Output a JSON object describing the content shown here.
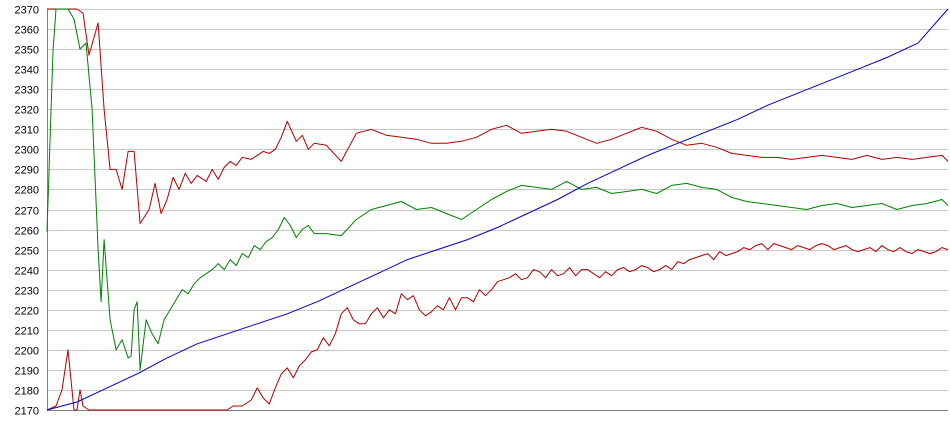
{
  "chart_data": {
    "type": "line",
    "title": "",
    "xlabel": "",
    "ylabel": "",
    "ylim": [
      2170,
      2370
    ],
    "yticks": [
      2170,
      2180,
      2190,
      2200,
      2210,
      2220,
      2230,
      2240,
      2250,
      2260,
      2270,
      2280,
      2290,
      2300,
      2310,
      2320,
      2330,
      2340,
      2350,
      2360,
      2370
    ],
    "ytick_labels": [
      "2170",
      "2180",
      "2190",
      "2200",
      "2210",
      "2220",
      "2230",
      "2240",
      "2250",
      "2260",
      "2270",
      "2280",
      "2290",
      "2300",
      "2310",
      "2320",
      "2330",
      "2340",
      "2350",
      "2360",
      "2370"
    ],
    "xlim": [
      0,
      300
    ],
    "grid": "horizontal",
    "legend": "none",
    "colors": {
      "upper_band": "#b00000",
      "middle": "#008000",
      "lower_band": "#b00000",
      "trend": "#0000c0",
      "grid": "#c8c8c8",
      "axis": "#808080"
    },
    "series": [
      {
        "key": "upper_band",
        "x": [
          0,
          3,
          5,
          8,
          10,
          12,
          14,
          17,
          19,
          21,
          23,
          25,
          27,
          29,
          31,
          34,
          36,
          38,
          40,
          42,
          44,
          46,
          48,
          50,
          53,
          55,
          57,
          59,
          61,
          63,
          65,
          68,
          70,
          72,
          74,
          76,
          78,
          80,
          83,
          85,
          87,
          89,
          93,
          98,
          103,
          108,
          113,
          118,
          123,
          128,
          133,
          138,
          143,
          148,
          153,
          158,
          163,
          168,
          173,
          178,
          183,
          188,
          193,
          198,
          203,
          208,
          213,
          218,
          223,
          228,
          233,
          238,
          243,
          248,
          253,
          258,
          263,
          268,
          273,
          278,
          283,
          288,
          293,
          298,
          300
        ],
        "y": [
          2370,
          2370,
          2370,
          2370,
          2370,
          2368,
          2347,
          2363,
          2320,
          2290,
          2290,
          2280,
          2299,
          2299,
          2263,
          2270,
          2283,
          2268,
          2275,
          2286,
          2280,
          2288,
          2283,
          2287,
          2284,
          2290,
          2285,
          2291,
          2294,
          2292,
          2296,
          2295,
          2297,
          2299,
          2298,
          2300,
          2306,
          2314,
          2304,
          2307,
          2300,
          2303,
          2302,
          2294,
          2308,
          2310,
          2307,
          2306,
          2305,
          2303,
          2303,
          2304,
          2306,
          2310,
          2312,
          2308,
          2309,
          2310,
          2309,
          2306,
          2303,
          2305,
          2308,
          2311,
          2309,
          2305,
          2302,
          2303,
          2301,
          2298,
          2297,
          2296,
          2296,
          2295,
          2296,
          2297,
          2296,
          2295,
          2297,
          2295,
          2296,
          2295,
          2296,
          2297,
          2294
        ]
      },
      {
        "key": "middle",
        "x": [
          0,
          2,
          3,
          5,
          7,
          9,
          11,
          13,
          15,
          17,
          18,
          19,
          21,
          23,
          25,
          27,
          28,
          29,
          30,
          31,
          33,
          35,
          37,
          39,
          41,
          43,
          45,
          47,
          49,
          51,
          53,
          55,
          57,
          59,
          61,
          63,
          65,
          67,
          69,
          71,
          73,
          75,
          77,
          79,
          81,
          83,
          85,
          87,
          89,
          93,
          98,
          103,
          108,
          113,
          118,
          123,
          128,
          133,
          138,
          143,
          148,
          153,
          158,
          163,
          168,
          173,
          178,
          183,
          188,
          193,
          198,
          203,
          208,
          213,
          218,
          223,
          228,
          233,
          238,
          243,
          248,
          253,
          258,
          263,
          268,
          273,
          278,
          283,
          288,
          293,
          298,
          300
        ],
        "y": [
          2259,
          2349,
          2370,
          2370,
          2370,
          2365,
          2350,
          2353,
          2320,
          2250,
          2224,
          2255,
          2215,
          2200,
          2205,
          2196,
          2197,
          2220,
          2224,
          2190,
          2215,
          2208,
          2203,
          2215,
          2220,
          2225,
          2230,
          2228,
          2233,
          2236,
          2238,
          2240,
          2243,
          2240,
          2245,
          2242,
          2248,
          2246,
          2252,
          2250,
          2254,
          2256,
          2260,
          2266,
          2262,
          2256,
          2260,
          2262,
          2258,
          2258,
          2257,
          2265,
          2270,
          2272,
          2274,
          2270,
          2271,
          2268,
          2265,
          2270,
          2275,
          2279,
          2282,
          2281,
          2280,
          2284,
          2280,
          2281,
          2278,
          2279,
          2280,
          2278,
          2282,
          2283,
          2281,
          2280,
          2276,
          2274,
          2273,
          2272,
          2271,
          2270,
          2272,
          2273,
          2271,
          2272,
          2273,
          2270,
          2272,
          2273,
          2275,
          2272
        ]
      },
      {
        "key": "lower_band",
        "x": [
          0,
          3,
          5,
          7,
          8,
          9,
          10,
          11,
          12,
          14,
          16,
          18,
          20,
          22,
          30,
          40,
          50,
          60,
          62,
          65,
          68,
          70,
          72,
          74,
          76,
          78,
          80,
          82,
          84,
          86,
          88,
          90,
          92,
          94,
          96,
          98,
          100,
          102,
          104,
          106,
          108,
          110,
          112,
          114,
          116,
          118,
          120,
          122,
          124,
          126,
          128,
          130,
          132,
          134,
          136,
          138,
          140,
          142,
          144,
          146,
          148,
          150,
          152,
          154,
          156,
          158,
          160,
          162,
          164,
          166,
          168,
          170,
          172,
          174,
          176,
          178,
          180,
          182,
          184,
          186,
          188,
          190,
          192,
          194,
          196,
          198,
          200,
          202,
          204,
          206,
          208,
          210,
          212,
          214,
          216,
          218,
          220,
          222,
          224,
          226,
          228,
          230,
          232,
          234,
          236,
          238,
          240,
          242,
          244,
          246,
          248,
          250,
          252,
          254,
          256,
          258,
          260,
          262,
          264,
          266,
          268,
          270,
          272,
          274,
          276,
          278,
          280,
          282,
          284,
          286,
          288,
          290,
          292,
          294,
          296,
          298,
          300
        ],
        "y": [
          2170,
          2172,
          2180,
          2200,
          2185,
          2170,
          2170,
          2180,
          2172,
          2170,
          2170,
          2170,
          2170,
          2170,
          2170,
          2170,
          2170,
          2170,
          2172,
          2172,
          2175,
          2181,
          2176,
          2173,
          2181,
          2188,
          2191,
          2186,
          2192,
          2195,
          2199,
          2200,
          2206,
          2202,
          2208,
          2218,
          2221,
          2215,
          2213,
          2213,
          2218,
          2221,
          2216,
          2220,
          2218,
          2228,
          2225,
          2227,
          2220,
          2217,
          2219,
          2222,
          2220,
          2226,
          2220,
          2226,
          2226,
          2224,
          2230,
          2227,
          2230,
          2234,
          2235,
          2236,
          2238,
          2235,
          2236,
          2240,
          2239,
          2236,
          2240,
          2237,
          2238,
          2241,
          2237,
          2240,
          2240,
          2238,
          2236,
          2239,
          2237,
          2240,
          2241,
          2239,
          2240,
          2242,
          2241,
          2239,
          2240,
          2242,
          2240,
          2244,
          2243,
          2245,
          2246,
          2247,
          2248,
          2245,
          2249,
          2247,
          2248,
          2249,
          2251,
          2250,
          2252,
          2253,
          2250,
          2253,
          2252,
          2251,
          2250,
          2252,
          2251,
          2250,
          2252,
          2253,
          2252,
          2250,
          2251,
          2252,
          2250,
          2249,
          2250,
          2251,
          2249,
          2252,
          2250,
          2249,
          2251,
          2249,
          2248,
          2250,
          2249,
          2248,
          2249,
          2251,
          2250
        ]
      },
      {
        "key": "trend",
        "x": [
          0,
          10,
          20,
          30,
          40,
          50,
          60,
          70,
          80,
          90,
          100,
          110,
          120,
          130,
          140,
          150,
          160,
          170,
          180,
          190,
          200,
          210,
          220,
          230,
          240,
          250,
          260,
          270,
          280,
          290,
          300
        ],
        "y": [
          2170,
          2174,
          2181,
          2188,
          2196,
          2203,
          2208,
          2213,
          2218,
          2224,
          2231,
          2238,
          2245,
          2250,
          2255,
          2261,
          2268,
          2275,
          2283,
          2290,
          2297,
          2303,
          2309,
          2315,
          2322,
          2328,
          2334,
          2340,
          2346,
          2353,
          2370
        ]
      }
    ]
  }
}
